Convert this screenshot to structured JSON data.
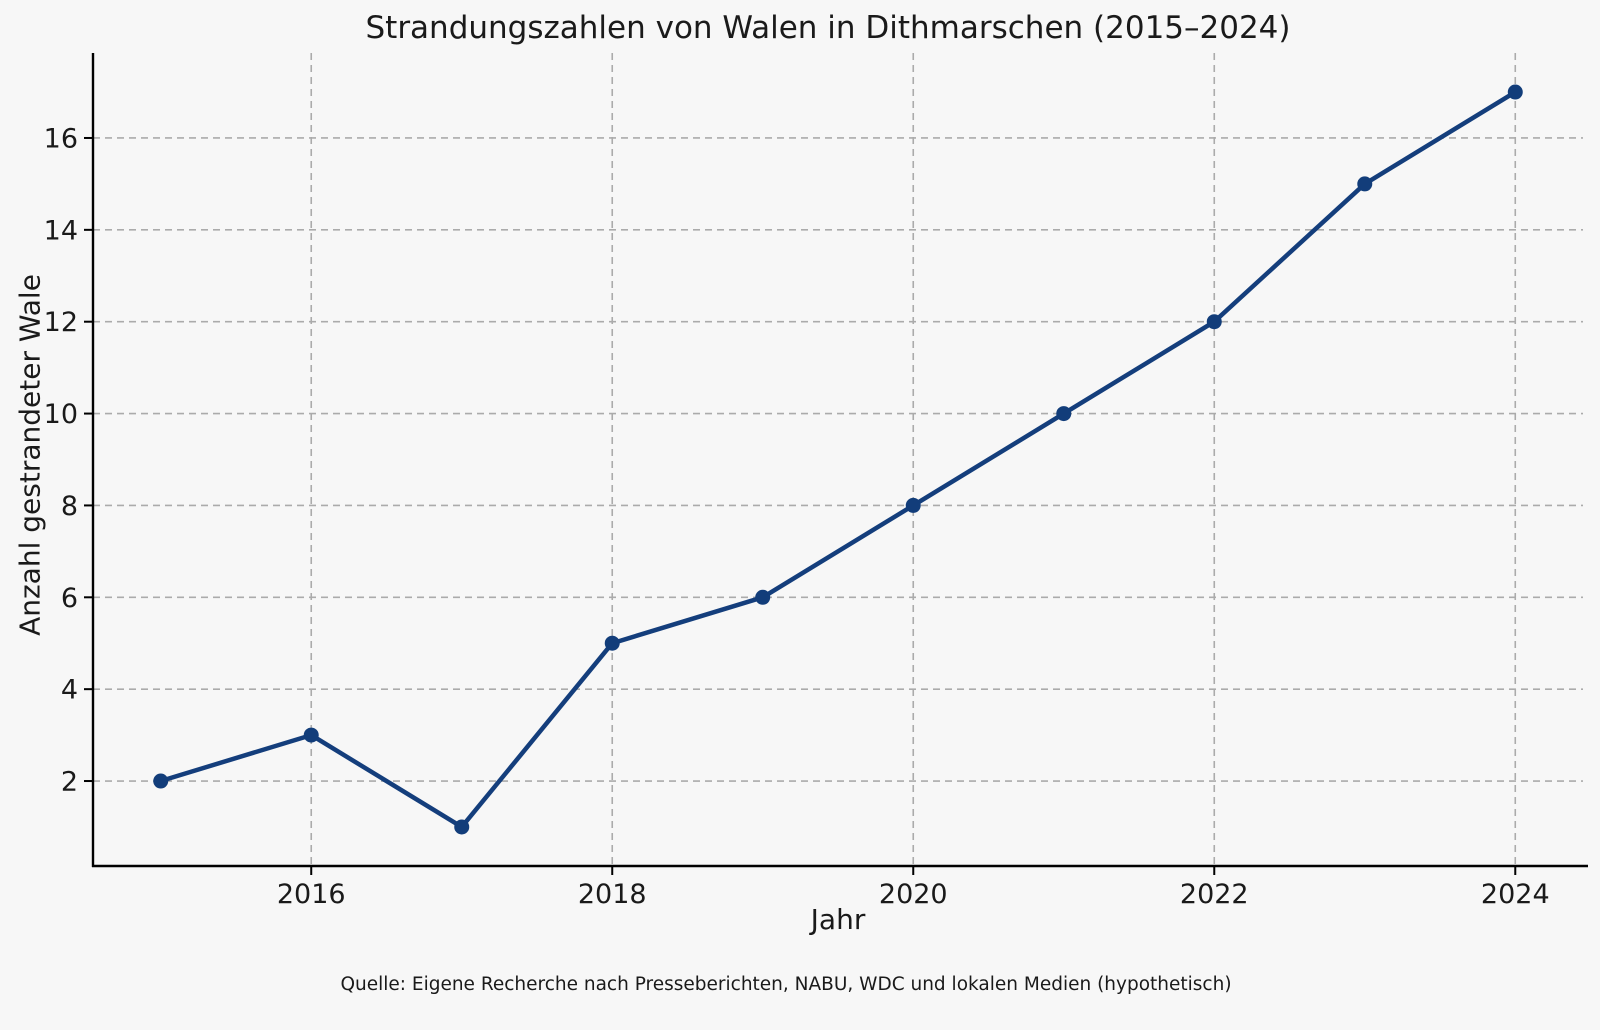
{
  "chart_data": {
    "type": "line",
    "title": "Strandungszahlen von Walen in Dithmarschen (2015–2024)",
    "xlabel": "Jahr",
    "ylabel": "Anzahl gestrandeter Wale",
    "source_note": "Quelle: Eigene Recherche nach Presseberichten, NABU, WDC und lokalen Medien (hypothetisch)",
    "x": [
      2015,
      2016,
      2017,
      2018,
      2019,
      2020,
      2021,
      2022,
      2023,
      2024
    ],
    "values": [
      2,
      3,
      1,
      5,
      6,
      8,
      10,
      12,
      15,
      17
    ],
    "xticks": [
      2016,
      2018,
      2020,
      2022,
      2024
    ],
    "yticks": [
      2,
      4,
      6,
      8,
      10,
      12,
      14,
      16
    ],
    "xlim": [
      2014.55,
      2024.45
    ],
    "ylim": [
      0.15,
      17.85
    ],
    "grid": true,
    "grid_style": "dashed",
    "legend": "none",
    "marker": "circle",
    "colors": {
      "line": "#143e7c",
      "marker": "#123d7a",
      "grid": "#ababab",
      "axis": "#000000",
      "text": "#1a1a1a",
      "background": "#f7f7f7"
    }
  }
}
